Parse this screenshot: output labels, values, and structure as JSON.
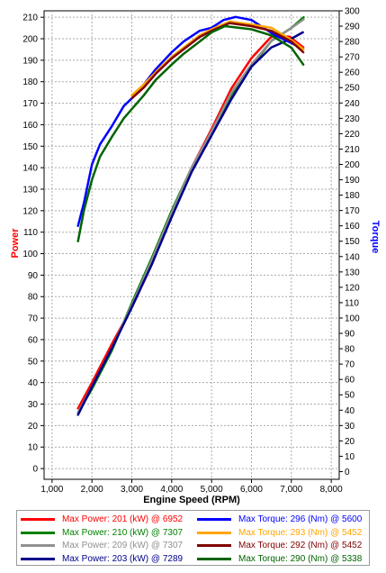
{
  "chart_data": {
    "type": "line",
    "title": "",
    "xlabel": "Engine Speed (RPM)",
    "ylabel_left": "Power",
    "ylabel_right": "Torque",
    "xlim": [
      800,
      8200
    ],
    "ylim_left": [
      -5,
      213
    ],
    "ylim_right": [
      -5,
      300
    ],
    "x_ticks": [
      "1,000",
      "2,000",
      "3,000",
      "4,000",
      "5,000",
      "6,000",
      "7,000",
      "8,000"
    ],
    "y_left_ticks": [
      0,
      10,
      20,
      30,
      40,
      50,
      60,
      70,
      80,
      90,
      100,
      110,
      120,
      130,
      140,
      150,
      160,
      170,
      180,
      190,
      200,
      210
    ],
    "y_right_ticks": [
      0,
      10,
      20,
      30,
      40,
      50,
      60,
      70,
      80,
      90,
      100,
      110,
      120,
      130,
      140,
      150,
      160,
      170,
      180,
      190,
      200,
      210,
      220,
      230,
      240,
      250,
      260,
      270,
      280,
      290,
      300
    ],
    "grid": true,
    "legend_position": "bottom",
    "series": [
      {
        "name": "Max Power: 201 (kW) @ 6952",
        "axis": "left",
        "color": "#ff0000",
        "x": [
          1650,
          2000,
          2500,
          3000,
          3500,
          4000,
          4500,
          5000,
          5500,
          6000,
          6500,
          6952,
          7300
        ],
        "y": [
          28,
          40,
          58,
          75,
          95,
          118,
          140,
          158,
          177,
          191,
          201,
          201,
          196
        ]
      },
      {
        "name": "Max Power: 210 (kW) @ 7307",
        "axis": "left",
        "color": "#008000",
        "x": [
          1650,
          2000,
          2500,
          3000,
          3500,
          4000,
          4500,
          5000,
          5500,
          6000,
          6500,
          7000,
          7307
        ],
        "y": [
          26,
          37,
          55,
          77,
          98,
          120,
          140,
          156,
          174,
          187,
          199,
          205,
          210
        ]
      },
      {
        "name": "Max Power: 209 (kW) @ 7307",
        "axis": "left",
        "color": "#909090",
        "x": [
          1650,
          2000,
          2500,
          3000,
          3500,
          4000,
          4500,
          5000,
          5500,
          6000,
          6500,
          7000,
          7307
        ],
        "y": [
          26,
          38,
          56,
          76,
          97,
          119,
          140,
          157,
          175,
          188,
          199,
          205,
          209
        ]
      },
      {
        "name": "Max Power: 203 (kW) @ 7289",
        "axis": "left",
        "color": "#00008b",
        "x": [
          1650,
          2000,
          2500,
          3000,
          3500,
          4000,
          4500,
          5000,
          5500,
          6000,
          6500,
          7000,
          7289
        ],
        "y": [
          25,
          38,
          56,
          75,
          95,
          117,
          138,
          155,
          172,
          187,
          196,
          200,
          203
        ]
      },
      {
        "name": "Max Torque: 296 (Nm) @ 5600",
        "axis": "right",
        "color": "#0000ff",
        "x": [
          1650,
          1800,
          2000,
          2200,
          2500,
          2800,
          3000,
          3300,
          3600,
          4000,
          4300,
          4700,
          5000,
          5300,
          5600,
          6000,
          6300,
          6600,
          7000,
          7300
        ],
        "y": [
          160,
          175,
          200,
          213,
          225,
          238,
          243,
          252,
          262,
          273,
          280,
          287,
          289,
          294,
          296,
          294,
          289,
          284,
          279,
          275
        ]
      },
      {
        "name": "Max Torque: 293 (Nm) @ 5452",
        "axis": "right",
        "color": "#ffa500",
        "x": [
          3000,
          3300,
          3600,
          4000,
          4300,
          4700,
          5000,
          5452,
          6000,
          6500,
          7000,
          7300
        ],
        "y": [
          245,
          252,
          260,
          270,
          276,
          284,
          288,
          293,
          291,
          289,
          281,
          275
        ]
      },
      {
        "name": "Max Torque: 292 (Nm) @ 5452",
        "axis": "right",
        "color": "#800000",
        "x": [
          3000,
          3300,
          3600,
          4000,
          4300,
          4700,
          5000,
          5452,
          6000,
          6500,
          7000,
          7300
        ],
        "y": [
          243,
          250,
          259,
          269,
          275,
          283,
          287,
          292,
          290,
          287,
          280,
          273
        ]
      },
      {
        "name": "Max Torque: 290 (Nm) @ 5338",
        "axis": "right",
        "color": "#006400",
        "x": [
          1650,
          1800,
          2000,
          2200,
          2500,
          2800,
          3000,
          3300,
          3600,
          4000,
          4300,
          4700,
          5000,
          5338,
          6000,
          6500,
          7000,
          7300
        ],
        "y": [
          150,
          170,
          190,
          205,
          218,
          230,
          236,
          245,
          255,
          265,
          272,
          280,
          286,
          290,
          288,
          284,
          276,
          265
        ]
      }
    ]
  }
}
